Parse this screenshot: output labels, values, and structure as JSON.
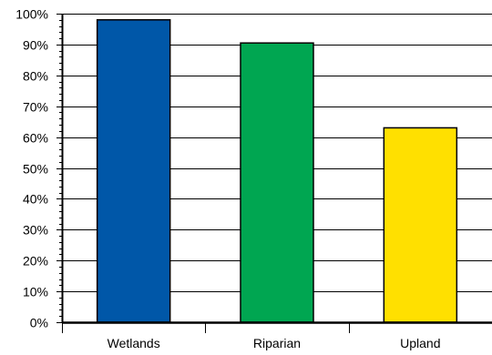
{
  "chart_data": {
    "type": "bar",
    "categories": [
      "Wetlands",
      "Riparian",
      "Upland"
    ],
    "values": [
      98,
      90.5,
      63
    ],
    "ylim": [
      0,
      100
    ],
    "y_ticks": [
      "0%",
      "10%",
      "20%",
      "30%",
      "40%",
      "50%",
      "60%",
      "70%",
      "80%",
      "90%",
      "100%"
    ],
    "title": "",
    "xlabel": "",
    "ylabel": "",
    "grid": "horizontal",
    "legend": "none",
    "colors": [
      "#0057A8",
      "#00A651",
      "#FFE000"
    ]
  }
}
